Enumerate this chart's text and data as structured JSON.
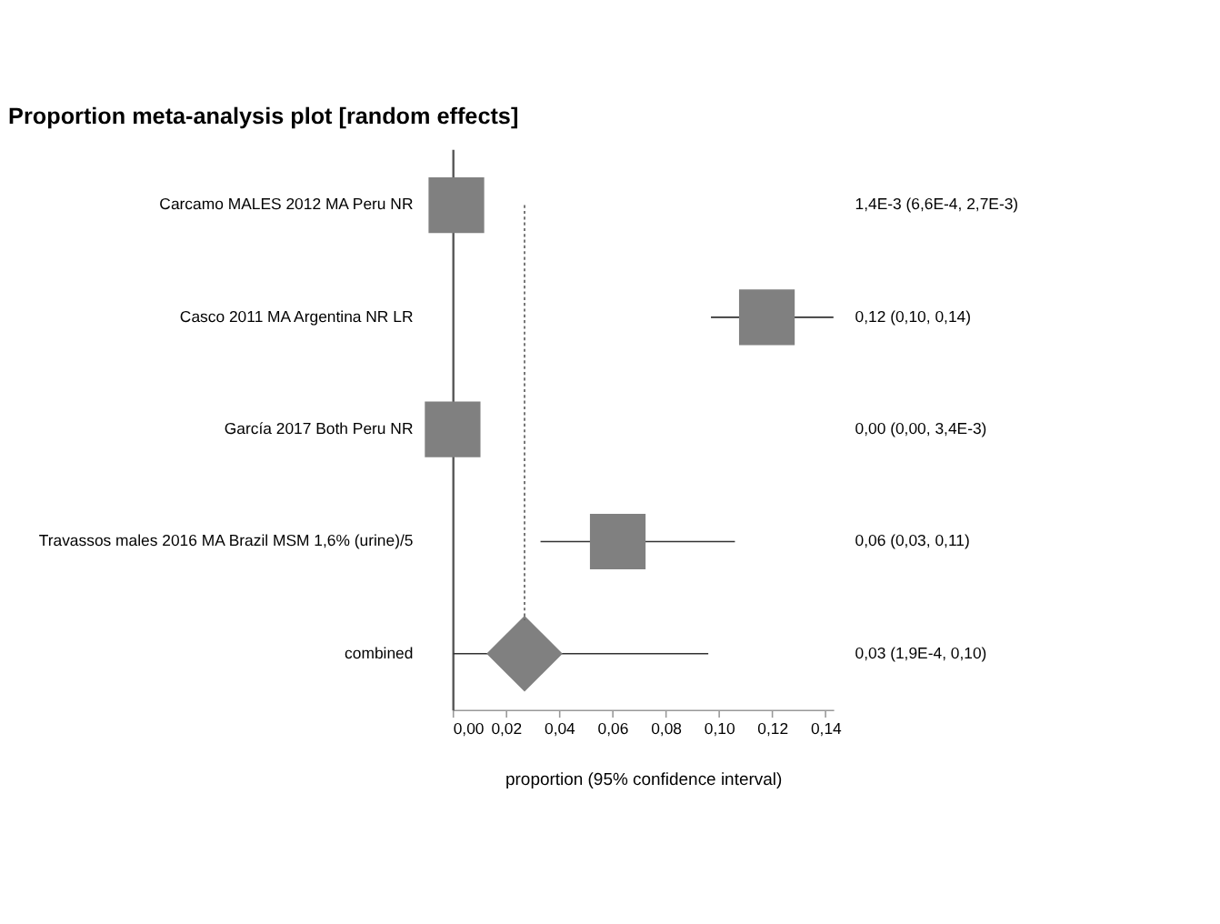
{
  "chart_data": {
    "type": "scatter",
    "orientation": "horizontal",
    "title": "Proportion meta-analysis plot [random effects]",
    "xlabel": "proportion (95% confidence interval)",
    "categories": [
      "Carcamo MALES 2012 MA Peru NR",
      "Casco 2011 MA Argentina NR LR",
      "García 2017 Both Peru NR",
      "Travassos males 2016 MA Brazil MSM 1,6% (urine)/5",
      "combined"
    ],
    "series": [
      {
        "color": "#808080",
        "marker": "square",
        "values": [
          0.0014,
          0.118,
          0.0,
          0.062,
          null
        ],
        "errors": [
          null,
          [
            0.097,
            0.143
          ],
          null,
          [
            0.033,
            0.106
          ],
          null
        ]
      },
      {
        "color": "#808080",
        "marker": "diamond",
        "values": [
          null,
          null,
          null,
          null,
          0.027
        ],
        "errors": [
          null,
          null,
          null,
          null,
          [
            0.0002,
            0.096
          ]
        ]
      }
    ],
    "value_labels": [
      "1,4E-3 (6,6E-4, 2,7E-3)",
      "0,12 (0,10, 0,14)",
      "0,00 (0,00, 3,4E-3)",
      "0,06 (0,03, 0,11)",
      "0,03 (1,9E-4, 0,10)"
    ],
    "xlim": [
      0,
      0.143
    ],
    "xticks": [
      {
        "value": 0,
        "label": "0,00"
      },
      {
        "value": 0.02,
        "label": "0,02"
      },
      {
        "value": 0.04,
        "label": "0,04"
      },
      {
        "value": 0.06,
        "label": "0,06"
      },
      {
        "value": 0.08,
        "label": "0,08"
      },
      {
        "value": 0.1,
        "label": "0,10"
      },
      {
        "value": 0.12,
        "label": "0,12"
      },
      {
        "value": 0.14,
        "label": "0,14"
      }
    ],
    "ref_lines": [
      {
        "axis": "x",
        "value": 0.027,
        "line_style": "dotted",
        "color": "#555555"
      }
    ],
    "grid": false
  }
}
